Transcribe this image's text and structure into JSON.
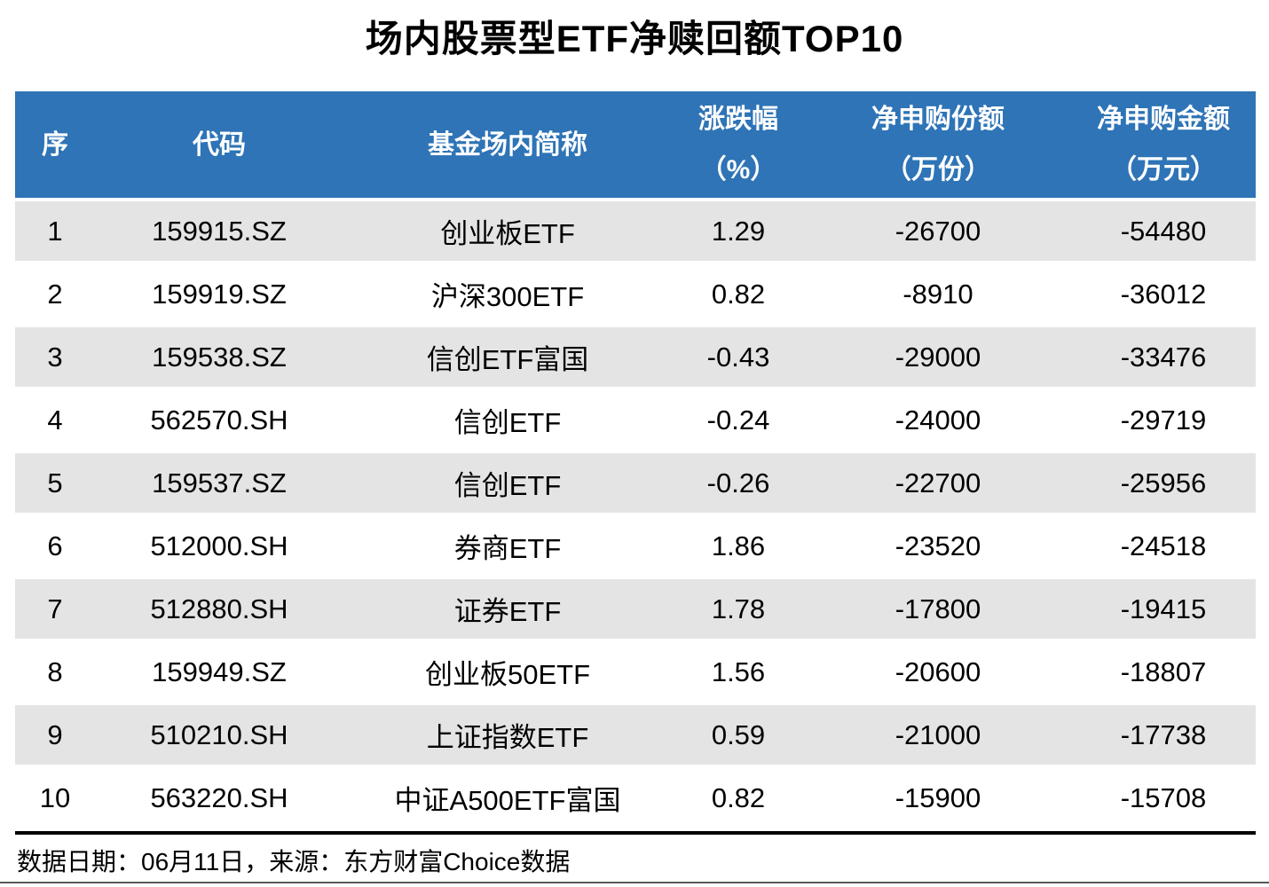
{
  "title": "场内股票型ETF净赎回额TOP10",
  "chart_data": {
    "type": "table",
    "title": "场内股票型ETF净赎回额TOP10",
    "columns": [
      "序",
      "代码",
      "基金场内简称",
      "涨跌幅（%）",
      "净申购份额（万份）",
      "净申购金额（万元）"
    ],
    "rows": [
      [
        1,
        "159915.SZ",
        "创业板ETF",
        1.29,
        -26700,
        -54480
      ],
      [
        2,
        "159919.SZ",
        "沪深300ETF",
        0.82,
        -8910,
        -36012
      ],
      [
        3,
        "159538.SZ",
        "信创ETF富国",
        -0.43,
        -29000,
        -33476
      ],
      [
        4,
        "562570.SH",
        "信创ETF",
        -0.24,
        -24000,
        -29719
      ],
      [
        5,
        "159537.SZ",
        "信创ETF",
        -0.26,
        -22700,
        -25956
      ],
      [
        6,
        "512000.SH",
        "券商ETF",
        1.86,
        -23520,
        -24518
      ],
      [
        7,
        "512880.SH",
        "证券ETF",
        1.78,
        -17800,
        -19415
      ],
      [
        8,
        "159949.SZ",
        "创业板50ETF",
        1.56,
        -20600,
        -18807
      ],
      [
        9,
        "510210.SH",
        "上证指数ETF",
        0.59,
        -21000,
        -17738
      ],
      [
        10,
        "563220.SH",
        "中证A500ETF富国",
        0.82,
        -15900,
        -15708
      ]
    ]
  },
  "header": {
    "seq": "序",
    "code": "代码",
    "name": "基金场内简称",
    "change_l1": "涨跌幅",
    "change_l2": "（%）",
    "shares_l1": "净申购份额",
    "shares_l2": "（万份）",
    "amount_l1": "净申购金额",
    "amount_l2": "（万元）"
  },
  "footer": {
    "note": "数据日期：06月11日，来源：东方财富Choice数据"
  },
  "colors": {
    "header_bg": "#2E74B6",
    "stripe_bg": "#E4E4E4",
    "header_text": "#FFFFFF",
    "body_text": "#000000",
    "divider": "#000000"
  }
}
